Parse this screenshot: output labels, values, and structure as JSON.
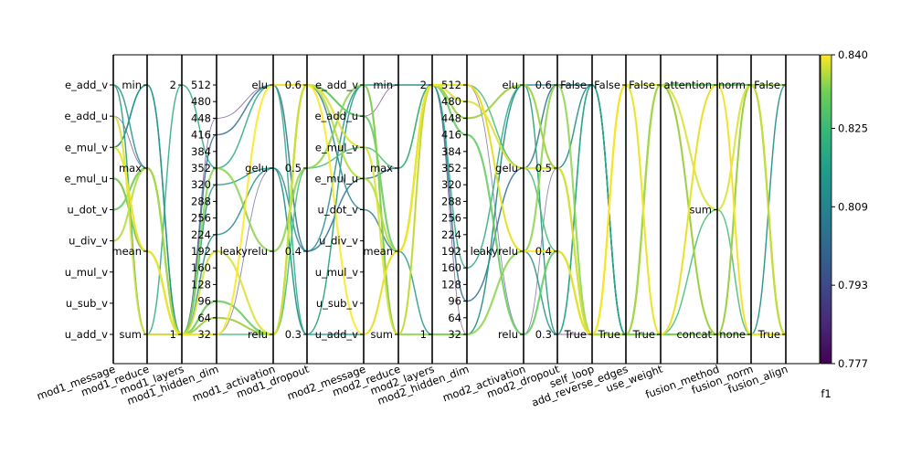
{
  "chart_data": {
    "type": "parallel_coordinates",
    "color_variable": "f1",
    "colorbar": {
      "label": "f1",
      "min": 0.777,
      "max": 0.84,
      "ticks": [
        "0.840",
        "0.825",
        "0.809",
        "0.793",
        "0.777"
      ]
    },
    "axes": [
      {
        "name": "mod1_message",
        "ticks": [
          "e_add_v",
          "e_add_u",
          "e_mul_v",
          "e_mul_u",
          "u_dot_v",
          "u_div_v",
          "u_mul_v",
          "u_sub_v",
          "u_add_v"
        ]
      },
      {
        "name": "mod1_reduce",
        "ticks": [
          "min",
          "max",
          "mean",
          "sum"
        ]
      },
      {
        "name": "mod1_layers",
        "ticks": [
          "2",
          "1"
        ]
      },
      {
        "name": "mod1_hidden_dim",
        "ticks": [
          "512",
          "480",
          "448",
          "416",
          "384",
          "352",
          "320",
          "288",
          "256",
          "224",
          "192",
          "160",
          "128",
          "96",
          "64",
          "32"
        ]
      },
      {
        "name": "mod1_activation",
        "ticks": [
          "elu",
          "gelu",
          "leakyrelu",
          "relu"
        ]
      },
      {
        "name": "mod1_dropout",
        "ticks": [
          "0.6",
          "0.5",
          "0.4",
          "0.3"
        ]
      },
      {
        "name": "mod2_message",
        "ticks": [
          "e_add_v",
          "e_add_u",
          "e_mul_v",
          "e_mul_u",
          "u_dot_v",
          "u_div_v",
          "u_mul_v",
          "u_sub_v",
          "u_add_v"
        ]
      },
      {
        "name": "mod2_reduce",
        "ticks": [
          "min",
          "max",
          "mean",
          "sum"
        ]
      },
      {
        "name": "mod2_layers",
        "ticks": [
          "2",
          "1"
        ]
      },
      {
        "name": "mod2_hidden_dim",
        "ticks": [
          "512",
          "480",
          "448",
          "416",
          "384",
          "352",
          "320",
          "288",
          "256",
          "224",
          "192",
          "160",
          "128",
          "96",
          "64",
          "32"
        ]
      },
      {
        "name": "mod2_activation",
        "ticks": [
          "elu",
          "gelu",
          "leakyrelu",
          "relu"
        ]
      },
      {
        "name": "mod2_dropout",
        "ticks": [
          "0.6",
          "0.5",
          "0.4",
          "0.3"
        ]
      },
      {
        "name": "self_loop",
        "ticks": [
          "False",
          "True"
        ]
      },
      {
        "name": "add_reverse_edges",
        "ticks": [
          "False",
          "True"
        ]
      },
      {
        "name": "use_weight",
        "ticks": [
          "False",
          "True"
        ]
      },
      {
        "name": "fusion_method",
        "ticks": [
          "attention",
          "sum",
          "concat"
        ]
      },
      {
        "name": "fusion_norm",
        "ticks": [
          "norm",
          "none"
        ]
      },
      {
        "name": "fusion_align",
        "ticks": [
          "False",
          "True"
        ]
      }
    ],
    "lines": [
      {
        "f1": 0.84,
        "values": [
          "e_mul_v",
          "mean",
          "1",
          "32",
          "elu",
          "0.6",
          "u_add_v",
          "mean",
          "2",
          "512",
          "leakyrelu",
          "0.4",
          "True",
          "False",
          "True",
          "attention",
          "none",
          "True"
        ]
      },
      {
        "f1": 0.838,
        "values": [
          "e_add_u",
          "sum",
          "1",
          "192",
          "relu",
          "0.6",
          "e_mul_v",
          "sum",
          "2",
          "480",
          "gelu",
          "0.5",
          "True",
          "False",
          "False",
          "sum",
          "norm",
          "True"
        ]
      },
      {
        "f1": 0.836,
        "values": [
          "u_div_v",
          "max",
          "1",
          "64",
          "relu",
          "0.6",
          "e_mul_u",
          "mean",
          "2",
          "448",
          "elu",
          "0.5",
          "True",
          "True",
          "False",
          "concat",
          "norm",
          "False"
        ]
      },
      {
        "f1": 0.834,
        "values": [
          "e_mul_u",
          "mean",
          "1",
          "352",
          "leakyrelu",
          "0.5",
          "e_add_v",
          "sum",
          "1",
          "32",
          "leakyrelu",
          "0.6",
          "True",
          "True",
          "True",
          "concat",
          "none",
          "True"
        ]
      },
      {
        "f1": 0.831,
        "values": [
          "u_dot_v",
          "max",
          "1",
          "96",
          "relu",
          "0.6",
          "e_add_u",
          "mean",
          "2",
          "416",
          "relu",
          "0.4",
          "True",
          "True",
          "False",
          "attention",
          "norm",
          "True"
        ]
      },
      {
        "f1": 0.826,
        "values": [
          "e_mul_v",
          "mean",
          "1",
          "32",
          "relu",
          "0.5",
          "e_mul_v",
          "max",
          "2",
          "512",
          "gelu",
          "0.4",
          "True",
          "False",
          "True",
          "sum",
          "none",
          "True"
        ]
      },
      {
        "f1": 0.82,
        "values": [
          "e_add_v",
          "sum",
          "2",
          "352",
          "elu",
          "0.3",
          "e_add_v",
          "sum",
          "2",
          "160",
          "elu",
          "0.3",
          "False",
          "True",
          "True",
          "attention",
          "norm",
          "False"
        ]
      },
      {
        "f1": 0.815,
        "values": [
          "e_mul_v",
          "min",
          "1",
          "320",
          "gelu",
          "0.3",
          "u_add_v",
          "mean",
          "1",
          "32",
          "elu",
          "0.5",
          "False",
          "True",
          "True",
          "concat",
          "none",
          "False"
        ]
      },
      {
        "f1": 0.812,
        "values": [
          "e_add_v",
          "max",
          "1",
          "224",
          "gelu",
          "0.4",
          "e_add_v",
          "min",
          "2",
          "512",
          "leakyrelu",
          "0.3",
          "False",
          "True",
          "False",
          "concat",
          "norm",
          "True"
        ]
      },
      {
        "f1": 0.808,
        "values": [
          "e_mul_v",
          "min",
          "1",
          "64",
          "relu",
          "0.6",
          "u_dot_v",
          "mean",
          "2",
          "448",
          "elu",
          "0.6",
          "False",
          "True",
          "True",
          "concat",
          "norm",
          "True"
        ]
      },
      {
        "f1": 0.803,
        "values": [
          "e_mul_u",
          "mean",
          "1",
          "416",
          "elu",
          "0.4",
          "e_mul_u",
          "max",
          "2",
          "96",
          "gelu",
          "0.6",
          "False",
          "True",
          "False",
          "concat",
          "norm",
          "False"
        ]
      },
      {
        "f1": 0.789,
        "values": [
          "e_add_v",
          "sum",
          "1",
          "32",
          "gelu",
          "0.3",
          "e_add_v",
          "sum",
          "2",
          "512",
          "relu",
          "0.5",
          "False",
          "True",
          "False",
          "attention",
          "none",
          "False"
        ]
      },
      {
        "f1": 0.781,
        "values": [
          "e_add_u",
          "max",
          "1",
          "448",
          "elu",
          "0.6",
          "e_add_u",
          "min",
          "2",
          "32",
          "elu",
          "0.3",
          "True",
          "True",
          "True",
          "concat",
          "none",
          "True"
        ]
      }
    ]
  }
}
